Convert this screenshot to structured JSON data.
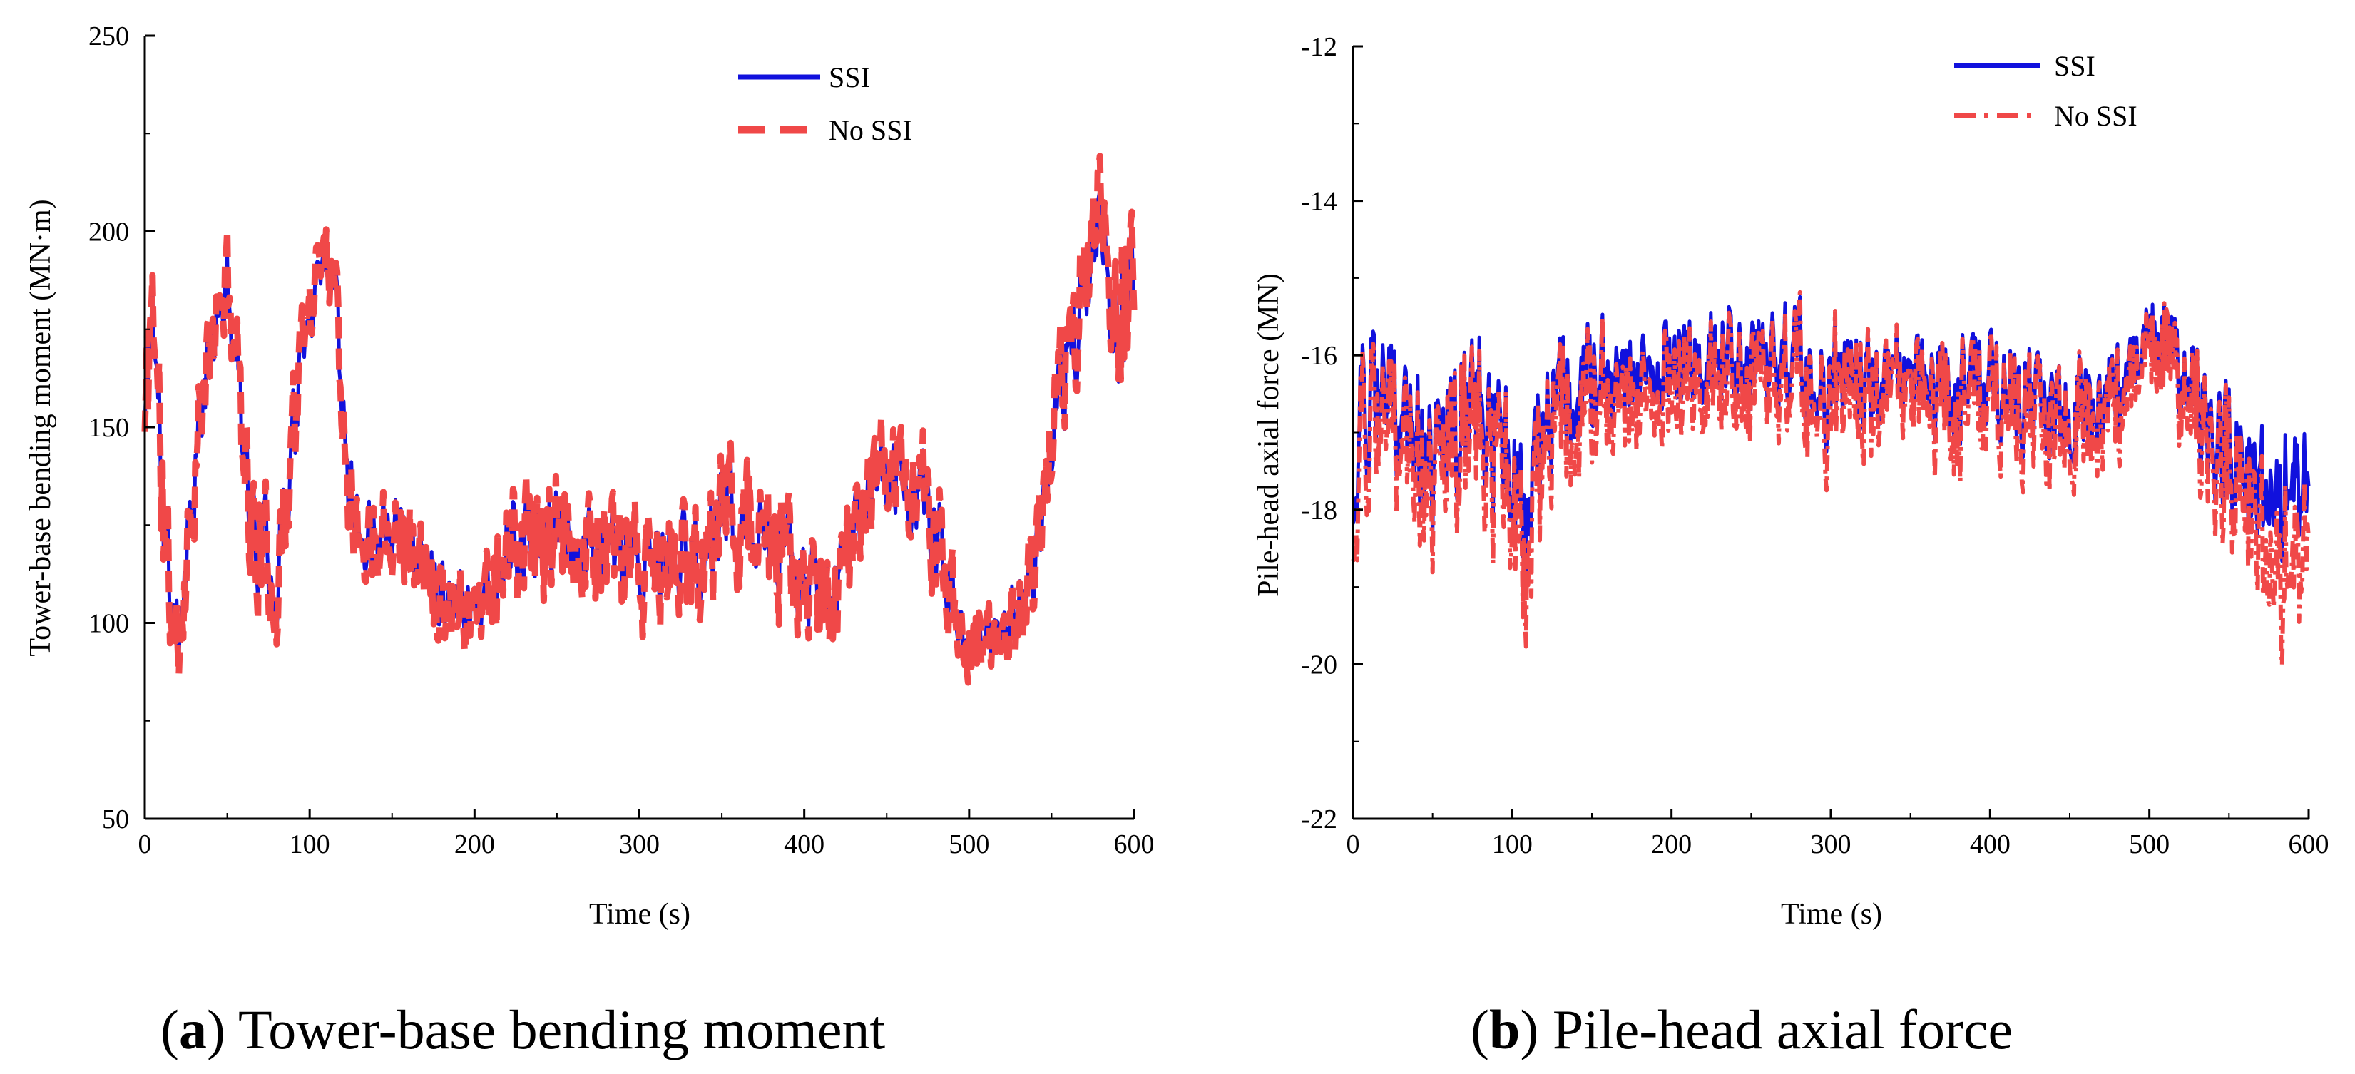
{
  "colors": {
    "ssi": "#1111dd",
    "no_ssi": "#f04848",
    "axis": "#000000"
  },
  "chart_data": [
    {
      "id": "a",
      "type": "line",
      "caption_letter": "a",
      "caption_text": ") Tower-base bending moment",
      "caption_paren": "(",
      "xlabel": "Time (s)",
      "ylabel": "Tower-base bending moment (MN·m)",
      "xlim": [
        0,
        600
      ],
      "ylim": [
        50,
        250
      ],
      "xticks": [
        0,
        100,
        200,
        300,
        400,
        500,
        600
      ],
      "yticks": [
        50,
        100,
        150,
        200,
        250
      ],
      "xticks_labels": [
        "0",
        "100",
        "200",
        "300",
        "400",
        "500",
        "600"
      ],
      "yticks_labels": [
        "50",
        "100",
        "150",
        "200",
        "250"
      ],
      "legend": [
        "SSI",
        "No SSI"
      ],
      "legend_position": "top-right",
      "series_profile": {
        "x": [
          0,
          5,
          12,
          20,
          30,
          40,
          50,
          58,
          65,
          72,
          80,
          90,
          100,
          108,
          115,
          122,
          130,
          140,
          150,
          160,
          170,
          185,
          200,
          220,
          240,
          260,
          280,
          300,
          320,
          340,
          355,
          370,
          385,
          400,
          415,
          430,
          445,
          460,
          475,
          490,
          500,
          510,
          520,
          530,
          540,
          550,
          560,
          570,
          580,
          590,
          600
        ],
        "SSI_mean": [
          150,
          185,
          120,
          95,
          140,
          170,
          185,
          160,
          125,
          120,
          110,
          150,
          180,
          195,
          190,
          150,
          120,
          125,
          130,
          120,
          115,
          108,
          105,
          118,
          120,
          120,
          118,
          112,
          115,
          118,
          130,
          122,
          118,
          110,
          105,
          125,
          138,
          135,
          128,
          105,
          95,
          95,
          100,
          105,
          112,
          150,
          165,
          185,
          200,
          175,
          190
        ],
        "SSI_amp": [
          30,
          25,
          30,
          15,
          20,
          15,
          12,
          18,
          25,
          20,
          20,
          20,
          15,
          12,
          15,
          20,
          15,
          15,
          15,
          15,
          15,
          15,
          15,
          20,
          20,
          18,
          18,
          20,
          20,
          20,
          20,
          20,
          18,
          18,
          15,
          18,
          15,
          15,
          20,
          15,
          12,
          12,
          12,
          15,
          15,
          18,
          20,
          18,
          18,
          30,
          18
        ],
        "NoSSI_mean": [
          148,
          188,
          118,
          92,
          138,
          172,
          188,
          162,
          122,
          118,
          108,
          152,
          182,
          198,
          192,
          148,
          118,
          124,
          128,
          119,
          114,
          107,
          104,
          119,
          121,
          121,
          119,
          111,
          114,
          119,
          132,
          123,
          117,
          109,
          104,
          124,
          140,
          137,
          129,
          104,
          94,
          94,
          99,
          104,
          111,
          152,
          167,
          188,
          205,
          178,
          192
        ],
        "NoSSI_amp": [
          32,
          27,
          34,
          18,
          22,
          17,
          14,
          20,
          28,
          22,
          22,
          22,
          17,
          14,
          17,
          22,
          17,
          17,
          17,
          17,
          17,
          17,
          17,
          22,
          22,
          20,
          20,
          22,
          22,
          22,
          22,
          22,
          20,
          20,
          17,
          20,
          17,
          17,
          22,
          17,
          14,
          14,
          14,
          17,
          17,
          20,
          22,
          20,
          22,
          32,
          20
        ]
      }
    },
    {
      "id": "b",
      "type": "line",
      "caption_letter": "b",
      "caption_text": ") Pile-head axial force",
      "caption_paren": "(",
      "xlabel": "Time (s)",
      "ylabel": "Pile-head axial force (MN)",
      "xlim": [
        0,
        600
      ],
      "ylim": [
        -22,
        -12
      ],
      "xticks": [
        0,
        100,
        200,
        300,
        400,
        500,
        600
      ],
      "yticks": [
        -22,
        -20,
        -18,
        -16,
        -14,
        -12
      ],
      "xticks_labels": [
        "0",
        "100",
        "200",
        "300",
        "400",
        "500",
        "600"
      ],
      "yticks_labels": [
        "-22",
        "-20",
        "-18",
        "-16",
        "-14",
        "-12"
      ],
      "legend": [
        "SSI",
        "No SSI"
      ],
      "legend_position": "top-right",
      "series_profile": {
        "x": [
          0,
          10,
          20,
          30,
          40,
          50,
          60,
          70,
          80,
          90,
          100,
          110,
          120,
          130,
          150,
          170,
          190,
          210,
          230,
          250,
          270,
          290,
          310,
          330,
          350,
          370,
          390,
          410,
          430,
          450,
          470,
          490,
          500,
          510,
          520,
          530,
          540,
          550,
          560,
          570,
          580,
          590,
          600
        ],
        "SSI_mean": [
          -17.5,
          -16.5,
          -16.2,
          -17.0,
          -17.0,
          -17.5,
          -17.2,
          -16.8,
          -16.5,
          -17.0,
          -17.6,
          -17.8,
          -17.0,
          -16.5,
          -16.3,
          -16.2,
          -16.0,
          -16.2,
          -16.0,
          -16.3,
          -16.0,
          -16.4,
          -16.2,
          -16.5,
          -16.3,
          -16.4,
          -16.2,
          -16.5,
          -16.6,
          -16.8,
          -16.6,
          -16.2,
          -15.8,
          -15.9,
          -16.1,
          -16.5,
          -17.0,
          -17.2,
          -17.5,
          -17.6,
          -18.0,
          -17.5,
          -17.8
        ],
        "SSI_amp": [
          1.6,
          1.5,
          1.6,
          1.4,
          1.3,
          1.3,
          1.4,
          1.4,
          1.5,
          1.3,
          1.4,
          1.4,
          1.2,
          1.1,
          1.1,
          1.0,
          0.9,
          0.9,
          1.0,
          1.0,
          1.1,
          1.0,
          1.0,
          1.0,
          1.0,
          1.0,
          1.0,
          1.0,
          1.1,
          1.1,
          1.0,
          1.0,
          1.1,
          1.0,
          1.0,
          1.1,
          1.1,
          1.2,
          1.2,
          1.2,
          1.3,
          1.3,
          1.2
        ],
        "NoSSI_mean": [
          -17.8,
          -16.8,
          -16.5,
          -17.3,
          -17.4,
          -17.8,
          -17.5,
          -17.0,
          -16.8,
          -17.3,
          -18.0,
          -18.3,
          -17.3,
          -16.8,
          -16.6,
          -16.5,
          -16.3,
          -16.5,
          -16.3,
          -16.6,
          -16.3,
          -16.6,
          -16.4,
          -16.7,
          -16.5,
          -16.6,
          -16.4,
          -16.7,
          -16.8,
          -17.0,
          -16.8,
          -16.4,
          -16.0,
          -16.1,
          -16.3,
          -16.7,
          -17.2,
          -17.5,
          -17.8,
          -18.2,
          -19.0,
          -18.5,
          -18.5
        ],
        "NoSSI_amp": [
          1.8,
          1.7,
          1.8,
          1.6,
          1.5,
          1.5,
          1.6,
          1.6,
          1.7,
          1.5,
          1.7,
          1.7,
          1.4,
          1.3,
          1.3,
          1.2,
          1.1,
          1.1,
          1.2,
          1.2,
          1.3,
          1.2,
          1.2,
          1.2,
          1.2,
          1.2,
          1.2,
          1.2,
          1.3,
          1.3,
          1.2,
          1.2,
          1.3,
          1.2,
          1.2,
          1.3,
          1.3,
          1.4,
          1.4,
          1.5,
          1.8,
          1.6,
          1.4
        ]
      }
    }
  ]
}
